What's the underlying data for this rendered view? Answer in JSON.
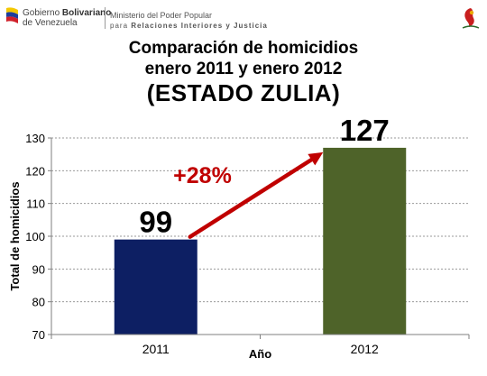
{
  "header": {
    "gov_line1_prefix": "Gobierno ",
    "gov_line1_bold": "Bolivariano",
    "gov_line2": "de Venezuela",
    "ministry_line1": "Ministerio del Poder Popular",
    "ministry_line2_prefix": "para ",
    "ministry_line2_bold": "Relaciones Interiores y Justicia"
  },
  "chart_data": {
    "type": "bar",
    "title_line1": "Comparación de homicidios",
    "title_line2": "enero 2011 y enero 2012",
    "subtitle": "(ESTADO ZULIA)",
    "categories": [
      "2011",
      "2012"
    ],
    "values": [
      99,
      127
    ],
    "data_labels": [
      "99",
      "127"
    ],
    "bar_colors": [
      "#0d1f63",
      "#4e6329"
    ],
    "xlabel": "Año",
    "ylabel": "Total de homicidios",
    "ylim": [
      70,
      130
    ],
    "yticks": [
      70,
      80,
      90,
      100,
      110,
      120,
      130
    ],
    "grid": true,
    "annotation": {
      "text": "+28%",
      "color": "#c00000"
    }
  }
}
